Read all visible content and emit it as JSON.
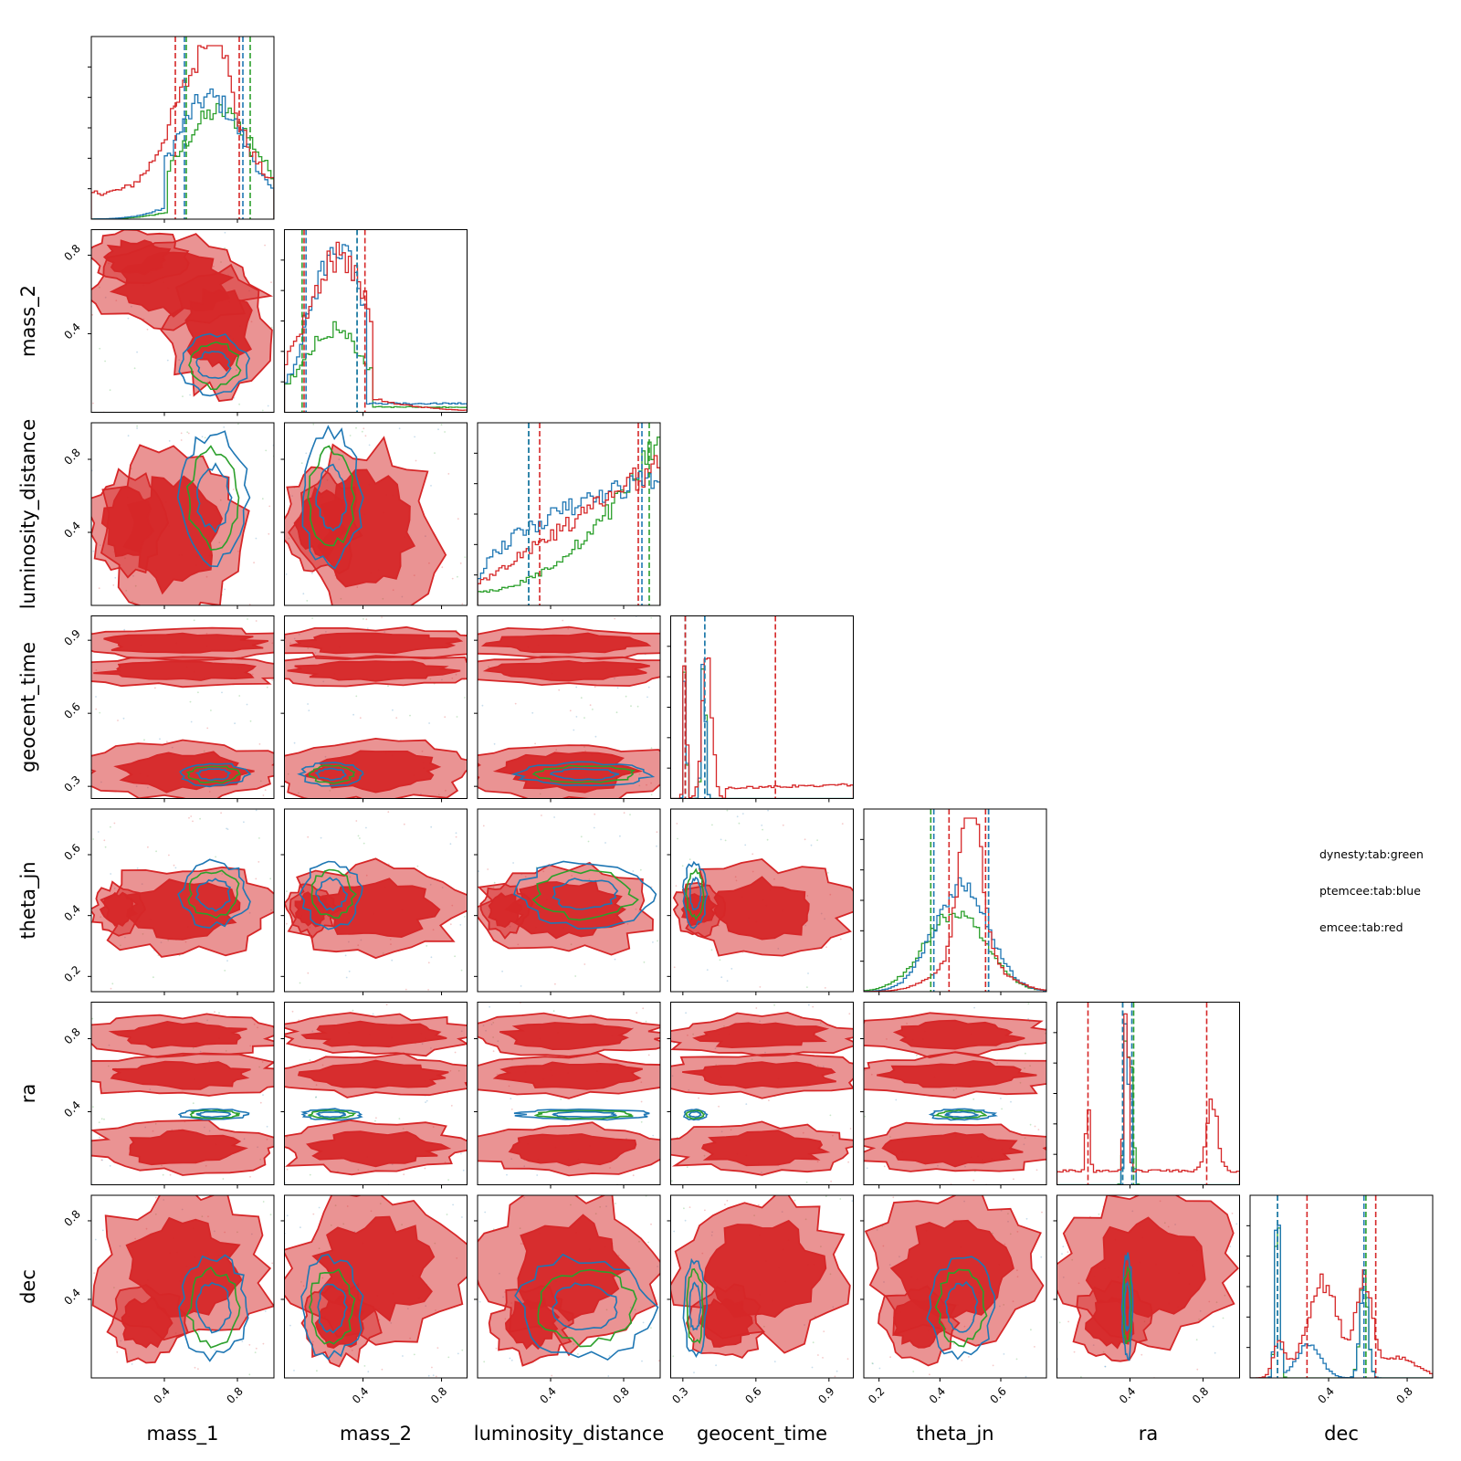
{
  "chart_data": {
    "type": "corner",
    "parameters": [
      "mass_1",
      "mass_2",
      "luminosity_distance",
      "geocent_time",
      "theta_jn",
      "ra",
      "dec"
    ],
    "colors": {
      "dynesty": "#2ca02c",
      "ptemcee": "#1f77b4",
      "emcee": "#d62728"
    },
    "axis_ranges": {
      "mass_1": [
        0.0,
        1.0
      ],
      "mass_2": [
        0.0,
        0.93
      ],
      "luminosity_distance": [
        0.0,
        1.0
      ],
      "geocent_time": [
        0.25,
        1.0
      ],
      "theta_jn": [
        0.15,
        0.75
      ],
      "ra": [
        0.0,
        1.0
      ],
      "dec": [
        0.0,
        0.93
      ]
    },
    "ticks": {
      "mass_1": [
        "0.4",
        "0.8"
      ],
      "mass_2": [
        "0.4",
        "0.8"
      ],
      "luminosity_distance": [
        "0.4",
        "0.8"
      ],
      "geocent_time": [
        "0.3",
        "0.6",
        "0.9"
      ],
      "theta_jn": [
        "0.2",
        "0.4",
        "0.6"
      ],
      "ra": [
        "0.4",
        "0.8"
      ],
      "dec": [
        "0.4",
        "0.8"
      ]
    },
    "tick_values": {
      "mass_1": [
        0.4,
        0.8
      ],
      "mass_2": [
        0.4,
        0.8
      ],
      "luminosity_distance": [
        0.4,
        0.8
      ],
      "geocent_time": [
        0.3,
        0.6,
        0.9
      ],
      "theta_jn": [
        0.2,
        0.4,
        0.6
      ],
      "ra": [
        0.4,
        0.8
      ],
      "dec": [
        0.4,
        0.8
      ]
    },
    "quantiles": {
      "mass_1": {
        "dynesty": [
          0.52,
          0.87
        ],
        "ptemcee": [
          0.51,
          0.83
        ],
        "emcee": [
          0.46,
          0.81
        ]
      },
      "mass_2": {
        "dynesty": [
          0.09,
          0.37
        ],
        "ptemcee": [
          0.11,
          0.37
        ],
        "emcee": [
          0.1,
          0.41
        ]
      },
      "luminosity_distance": {
        "dynesty": [
          0.28,
          0.94
        ],
        "ptemcee": [
          0.28,
          0.9
        ],
        "emcee": [
          0.34,
          0.88
        ]
      },
      "geocent_time": {
        "dynesty": [
          0.31,
          0.39
        ],
        "ptemcee": [
          0.31,
          0.39
        ],
        "emcee": [
          0.31,
          0.68
        ]
      },
      "theta_jn": {
        "dynesty": [
          0.37,
          0.56
        ],
        "ptemcee": [
          0.38,
          0.56
        ],
        "emcee": [
          0.43,
          0.55
        ]
      },
      "ra": {
        "dynesty": [
          0.36,
          0.42
        ],
        "ptemcee": [
          0.36,
          0.41
        ],
        "emcee": [
          0.17,
          0.82
        ]
      },
      "dec": {
        "dynesty": [
          0.14,
          0.59
        ],
        "ptemcee": [
          0.14,
          0.58
        ],
        "emcee": [
          0.29,
          0.64
        ]
      }
    },
    "legend": {
      "placement": "right",
      "entries": [
        "dynesty:tab:green",
        "ptemcee:tab:blue",
        "emcee:tab:red"
      ]
    }
  }
}
